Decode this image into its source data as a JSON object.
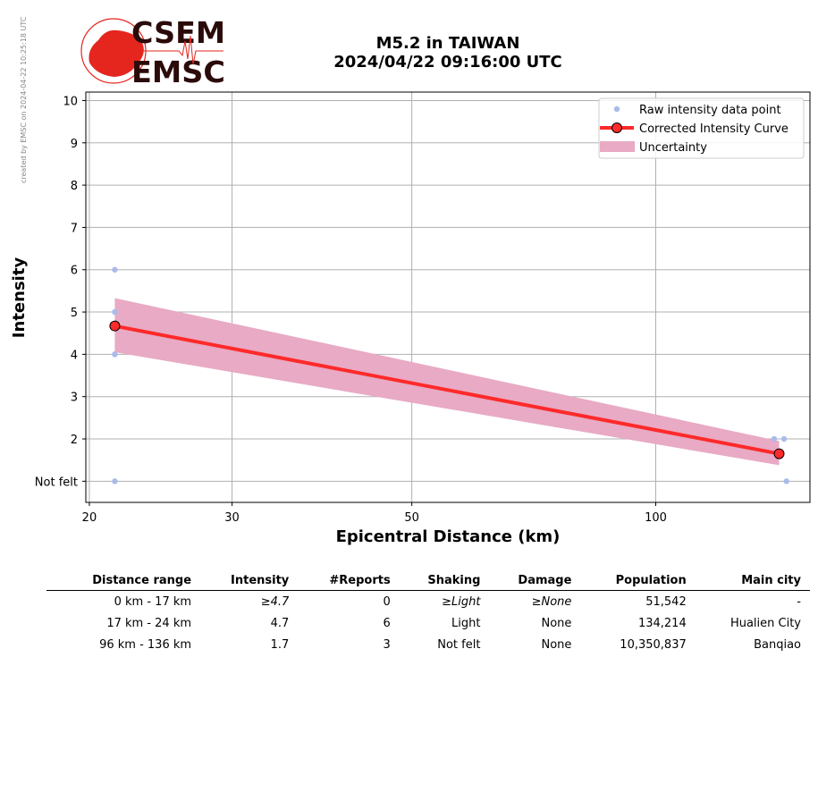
{
  "stamp": "created by EMSC on 2024-04-22 10:25:18 UTC",
  "logo": {
    "line1": "CSEM",
    "line2": "EMSC",
    "color": "#e4261f"
  },
  "title": {
    "line1": "M5.2 in TAIWAN",
    "line2": "2024/04/22 09:16:00 UTC"
  },
  "chart_data": {
    "type": "scatter",
    "xlabel": "Epicentral Distance (km)",
    "ylabel": "Intensity",
    "x_scale": "log",
    "xlim": [
      19.8,
      155
    ],
    "ylim": [
      0.5,
      10.2
    ],
    "x_ticks": [
      20,
      30,
      50,
      100
    ],
    "y_ticks": [
      {
        "v": 1,
        "label": "Not felt"
      },
      {
        "v": 2,
        "label": "2"
      },
      {
        "v": 3,
        "label": "3"
      },
      {
        "v": 4,
        "label": "4"
      },
      {
        "v": 5,
        "label": "5"
      },
      {
        "v": 6,
        "label": "6"
      },
      {
        "v": 7,
        "label": "7"
      },
      {
        "v": 8,
        "label": "8"
      },
      {
        "v": 9,
        "label": "9"
      },
      {
        "v": 10,
        "label": "10"
      }
    ],
    "grid": true,
    "legend_position": "top-right",
    "series": [
      {
        "name": "Raw intensity data point",
        "kind": "points",
        "color": "#aabbea",
        "points": [
          [
            21.5,
            6
          ],
          [
            21.5,
            5
          ],
          [
            21.5,
            4
          ],
          [
            21.5,
            4
          ],
          [
            21.5,
            1
          ],
          [
            140,
            2
          ],
          [
            144,
            2
          ],
          [
            145,
            1
          ]
        ]
      },
      {
        "name": "Corrected Intensity Curve",
        "kind": "line",
        "color": "#ff2a2a",
        "points": [
          [
            21.5,
            4.67
          ],
          [
            142,
            1.65
          ]
        ]
      },
      {
        "name": "Uncertainty",
        "kind": "band",
        "color": "#e8aac4",
        "x": [
          21.5,
          142
        ],
        "upper": [
          5.33,
          1.95
        ],
        "lower": [
          4.05,
          1.38
        ]
      }
    ]
  },
  "table": {
    "headers": [
      "Distance range",
      "Intensity",
      "#Reports",
      "Shaking",
      "Damage",
      "Population",
      "Main city"
    ],
    "rows": [
      {
        "cells": [
          "0 km -   17 km",
          "≥4.7",
          "0",
          "≥Light",
          "≥None",
          "51,542",
          "-"
        ],
        "italic": [
          1,
          3,
          4
        ]
      },
      {
        "cells": [
          "17 km -   24 km",
          "4.7",
          "6",
          "Light",
          "None",
          "134,214",
          "Hualien City"
        ],
        "italic": []
      },
      {
        "cells": [
          "96 km -  136 km",
          "1.7",
          "3",
          "Not felt",
          "None",
          "10,350,837",
          "Banqiao"
        ],
        "italic": []
      }
    ]
  }
}
